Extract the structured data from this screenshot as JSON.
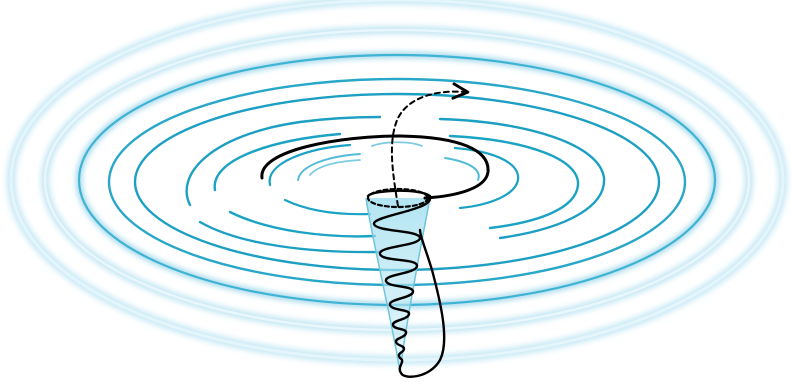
{
  "diagram": {
    "ring_color": "#1aa3c4",
    "outer_glow_color": "#bfe6f3",
    "funnel_color": "#8fd3e8",
    "path_color": "#000000"
  }
}
